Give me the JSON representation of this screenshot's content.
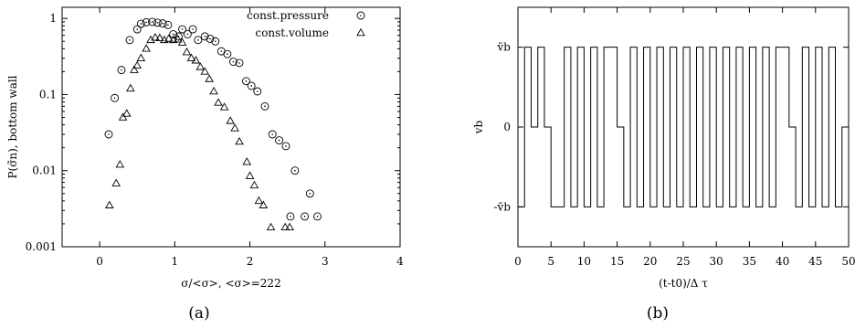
{
  "chart_data": [
    {
      "type": "scatter",
      "panel_label": "(a)",
      "xlabel": "σ/<σ>,  <σ>=222",
      "ylabel": "P(σ̃n), bottom wall",
      "xlim": [
        -0.5,
        4
      ],
      "ylim": [
        0.001,
        1.4
      ],
      "yscale": "log",
      "xticks": [
        "0",
        "1",
        "2",
        "3",
        "4"
      ],
      "yticks": [
        "0.001",
        "0.01",
        "0.1",
        "1"
      ],
      "legend_position": "top-right",
      "series": [
        {
          "name": "const.pressure",
          "marker": "circle",
          "points": [
            [
              0.12,
              0.03
            ],
            [
              0.2,
              0.09
            ],
            [
              0.29,
              0.21
            ],
            [
              0.4,
              0.52
            ],
            [
              0.5,
              0.72
            ],
            [
              0.55,
              0.85
            ],
            [
              0.62,
              0.89
            ],
            [
              0.7,
              0.9
            ],
            [
              0.77,
              0.88
            ],
            [
              0.84,
              0.86
            ],
            [
              0.91,
              0.82
            ],
            [
              0.98,
              0.62
            ],
            [
              1.05,
              0.58
            ],
            [
              1.1,
              0.72
            ],
            [
              1.17,
              0.62
            ],
            [
              1.24,
              0.72
            ],
            [
              1.31,
              0.52
            ],
            [
              1.4,
              0.58
            ],
            [
              1.47,
              0.54
            ],
            [
              1.54,
              0.5
            ],
            [
              1.62,
              0.37
            ],
            [
              1.7,
              0.34
            ],
            [
              1.78,
              0.27
            ],
            [
              1.86,
              0.26
            ],
            [
              1.95,
              0.15
            ],
            [
              2.02,
              0.13
            ],
            [
              2.1,
              0.11
            ],
            [
              2.2,
              0.07
            ],
            [
              2.3,
              0.03
            ],
            [
              2.39,
              0.025
            ],
            [
              2.48,
              0.021
            ],
            [
              2.54,
              0.0025
            ],
            [
              2.6,
              0.01
            ],
            [
              2.73,
              0.0025
            ],
            [
              2.8,
              0.005
            ],
            [
              2.9,
              0.0025
            ]
          ]
        },
        {
          "name": "const.volume",
          "marker": "triangle",
          "points": [
            [
              0.13,
              0.0035
            ],
            [
              0.22,
              0.0068
            ],
            [
              0.27,
              0.012
            ],
            [
              0.31,
              0.05
            ],
            [
              0.36,
              0.056
            ],
            [
              0.41,
              0.12
            ],
            [
              0.46,
              0.21
            ],
            [
              0.5,
              0.24
            ],
            [
              0.55,
              0.3
            ],
            [
              0.62,
              0.4
            ],
            [
              0.68,
              0.52
            ],
            [
              0.74,
              0.56
            ],
            [
              0.8,
              0.55
            ],
            [
              0.86,
              0.52
            ],
            [
              0.92,
              0.54
            ],
            [
              0.98,
              0.52
            ],
            [
              1.04,
              0.53
            ],
            [
              1.1,
              0.48
            ],
            [
              1.16,
              0.36
            ],
            [
              1.22,
              0.3
            ],
            [
              1.28,
              0.28
            ],
            [
              1.34,
              0.23
            ],
            [
              1.4,
              0.2
            ],
            [
              1.46,
              0.16
            ],
            [
              1.52,
              0.11
            ],
            [
              1.58,
              0.078
            ],
            [
              1.66,
              0.068
            ],
            [
              1.74,
              0.045
            ],
            [
              1.8,
              0.036
            ],
            [
              1.86,
              0.024
            ],
            [
              1.96,
              0.013
            ],
            [
              2.0,
              0.0085
            ],
            [
              2.06,
              0.0064
            ],
            [
              2.12,
              0.004
            ],
            [
              2.18,
              0.0035
            ],
            [
              2.28,
              0.0018
            ],
            [
              2.47,
              0.0018
            ],
            [
              2.53,
              0.0018
            ]
          ]
        }
      ]
    },
    {
      "type": "line",
      "panel_label": "(b)",
      "xlabel": "(t-t0)/Δ τ",
      "ylabel": "vb",
      "xlim": [
        0,
        50
      ],
      "ylim": [
        -1.5,
        1.5
      ],
      "xticks": [
        "0",
        "5",
        "10",
        "15",
        "20",
        "25",
        "30",
        "35",
        "40",
        "45",
        "50"
      ],
      "yticks": [
        "-v̄b",
        "0",
        "v̄b"
      ],
      "y_levels": [
        -1,
        0,
        1
      ],
      "series": [
        {
          "name": "",
          "step": true,
          "x": [
            0,
            1,
            2,
            3,
            4,
            5,
            6,
            7,
            8,
            9,
            10,
            11,
            12,
            13,
            14,
            15,
            16,
            17,
            18,
            19,
            20,
            21,
            22,
            23,
            24,
            25,
            26,
            27,
            28,
            29,
            30,
            31,
            32,
            33,
            34,
            35,
            36,
            37,
            38,
            39,
            40,
            41,
            42,
            43,
            44,
            45,
            46,
            47,
            48,
            49
          ],
          "values": [
            -1,
            1,
            0,
            1,
            0,
            -1,
            -1,
            1,
            -1,
            1,
            -1,
            1,
            -1,
            1,
            1,
            0,
            -1,
            1,
            -1,
            1,
            -1,
            1,
            -1,
            1,
            -1,
            1,
            -1,
            1,
            -1,
            1,
            -1,
            1,
            -1,
            1,
            -1,
            1,
            -1,
            1,
            -1,
            1,
            1,
            0,
            -1,
            1,
            -1,
            1,
            -1,
            1,
            -1,
            0
          ]
        }
      ]
    }
  ]
}
